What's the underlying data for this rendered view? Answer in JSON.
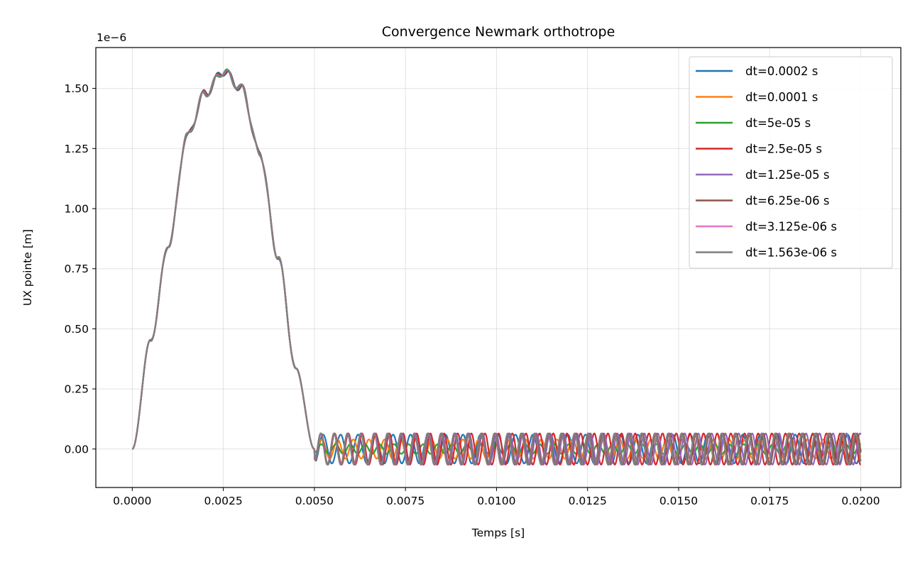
{
  "chart_data": {
    "type": "line",
    "title": "Convergence Newmark orthotrope",
    "xlabel": "Temps [s]",
    "ylabel": "UX pointe [m]",
    "y_offset_label": "1e−6",
    "y_scale": 1e-06,
    "xlim": [
      -0.001,
      0.0211
    ],
    "ylim": [
      -0.16,
      1.67
    ],
    "x_ticks": [
      0.0,
      0.0025,
      0.005,
      0.0075,
      0.01,
      0.0125,
      0.015,
      0.0175,
      0.02
    ],
    "x_tick_labels": [
      "0.0000",
      "0.0025",
      "0.0050",
      "0.0075",
      "0.0100",
      "0.0125",
      "0.0150",
      "0.0175",
      "0.0200"
    ],
    "y_ticks": [
      0.0,
      0.25,
      0.5,
      0.75,
      1.0,
      1.25,
      1.5
    ],
    "y_tick_labels": [
      "0.00",
      "0.25",
      "0.50",
      "0.75",
      "1.00",
      "1.25",
      "1.50"
    ],
    "grid": true,
    "legend_position": "top-right",
    "pulse": {
      "x": [
        0.0,
        0.0005,
        0.001,
        0.0015,
        0.002,
        0.0025,
        0.003,
        0.0035,
        0.004,
        0.0045,
        0.005
      ],
      "y": [
        0.0,
        0.45,
        0.85,
        1.3,
        1.48,
        1.57,
        1.5,
        1.23,
        0.8,
        0.33,
        0.0
      ]
    },
    "series": [
      {
        "name": "dt=0.0002 s",
        "color": "#1f77b4",
        "post_amplitude": 0.06,
        "post_period": 0.00048,
        "phase": 0.0
      },
      {
        "name": "dt=0.0001 s",
        "color": "#ff7f0e",
        "post_amplitude": 0.04,
        "post_period": 0.00043,
        "phase": 0.5
      },
      {
        "name": "dt=5e-05 s",
        "color": "#2ca02c",
        "post_amplitude": 0.02,
        "post_period": 0.0004,
        "phase": 1.0
      },
      {
        "name": "dt=2.5e-05 s",
        "color": "#d62728",
        "post_amplitude": 0.065,
        "post_period": 0.000375,
        "phase": 0.3
      },
      {
        "name": "dt=1.25e-05 s",
        "color": "#9467bd",
        "post_amplitude": 0.065,
        "post_period": 0.00037,
        "phase": 0.6
      },
      {
        "name": "dt=6.25e-06 s",
        "color": "#8c564b",
        "post_amplitude": 0.065,
        "post_period": 0.000368,
        "phase": 0.7
      },
      {
        "name": "dt=3.125e-06 s",
        "color": "#e377c2",
        "post_amplitude": 0.065,
        "post_period": 0.000367,
        "phase": 0.75
      },
      {
        "name": "dt=1.563e-06 s",
        "color": "#7f7f7f",
        "post_amplitude": 0.065,
        "post_period": 0.000367,
        "phase": 0.8
      }
    ]
  }
}
